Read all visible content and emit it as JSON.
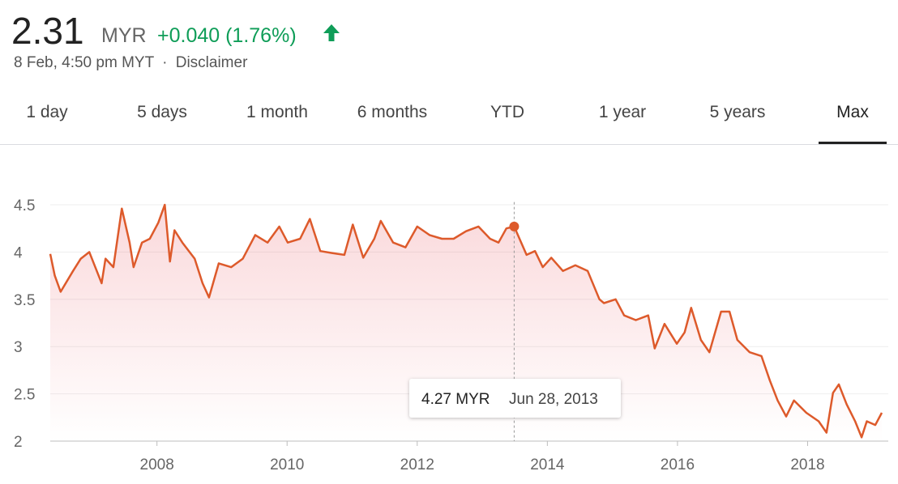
{
  "header": {
    "price": "2.31",
    "currency": "MYR",
    "change": "+0.040 (1.76%)",
    "timestamp": "8 Feb, 4:50 pm MYT",
    "separator": "·",
    "disclaimer": "Disclaimer"
  },
  "tabs": {
    "items": [
      "1 day",
      "5 days",
      "1 month",
      "6 months",
      "YTD",
      "1 year",
      "5 years",
      "Max"
    ],
    "selected": 7
  },
  "chart_data": {
    "type": "line",
    "x": [
      2006.36,
      2006.43,
      2006.52,
      2006.71,
      2006.83,
      2006.96,
      2007.15,
      2007.21,
      2007.33,
      2007.46,
      2007.58,
      2007.64,
      2007.77,
      2007.89,
      2008.02,
      2008.12,
      2008.2,
      2008.27,
      2008.39,
      2008.58,
      2008.7,
      2008.8,
      2008.95,
      2009.14,
      2009.32,
      2009.51,
      2009.7,
      2009.88,
      2010.01,
      2010.2,
      2010.35,
      2010.51,
      2010.69,
      2010.88,
      2011.01,
      2011.17,
      2011.34,
      2011.44,
      2011.63,
      2011.82,
      2012.0,
      2012.19,
      2012.38,
      2012.56,
      2012.75,
      2012.94,
      2013.12,
      2013.25,
      2013.37,
      2013.49,
      2013.68,
      2013.81,
      2013.93,
      2014.06,
      2014.24,
      2014.43,
      2014.62,
      2014.8,
      2014.87,
      2015.05,
      2015.18,
      2015.36,
      2015.55,
      2015.65,
      2015.8,
      2015.99,
      2016.11,
      2016.21,
      2016.36,
      2016.49,
      2016.67,
      2016.8,
      2016.92,
      2017.11,
      2017.29,
      2017.42,
      2017.54,
      2017.67,
      2017.79,
      2017.98,
      2018.17,
      2018.29,
      2018.39,
      2018.48,
      2018.6,
      2018.73,
      2018.83,
      2018.91,
      2019.04,
      2019.14
    ],
    "series": [
      {
        "color": "#dd5a2b",
        "values": [
          3.98,
          3.75,
          3.58,
          3.8,
          3.93,
          4.0,
          3.67,
          3.93,
          3.84,
          4.46,
          4.1,
          3.84,
          4.1,
          4.14,
          4.31,
          4.5,
          3.9,
          4.23,
          4.1,
          3.93,
          3.67,
          3.52,
          3.88,
          3.84,
          3.93,
          4.18,
          4.1,
          4.27,
          4.1,
          4.14,
          4.35,
          4.01,
          3.99,
          3.97,
          4.29,
          3.94,
          4.14,
          4.33,
          4.1,
          4.05,
          4.27,
          4.18,
          4.14,
          4.14,
          4.22,
          4.27,
          4.14,
          4.1,
          4.25,
          4.27,
          3.97,
          4.01,
          3.84,
          3.94,
          3.8,
          3.86,
          3.8,
          3.5,
          3.46,
          3.5,
          3.33,
          3.28,
          3.33,
          2.98,
          3.24,
          3.03,
          3.15,
          3.41,
          3.07,
          2.94,
          3.37,
          3.37,
          3.07,
          2.94,
          2.9,
          2.64,
          2.43,
          2.26,
          2.43,
          2.3,
          2.21,
          2.09,
          2.51,
          2.6,
          2.39,
          2.21,
          2.04,
          2.21,
          2.17,
          2.3
        ]
      }
    ],
    "xlim": [
      2006.36,
      2019.14
    ],
    "ylim": [
      2.0,
      4.7
    ],
    "xticks": [
      2008,
      2010,
      2012,
      2014,
      2016,
      2018
    ],
    "yticks": [
      2.0,
      2.5,
      3.0,
      3.5,
      4.0,
      4.5
    ],
    "grid": true,
    "tooltip": {
      "x": 2013.49,
      "value": 4.27,
      "label": "4.27 MYR",
      "date": "Jun 28, 2013"
    }
  }
}
